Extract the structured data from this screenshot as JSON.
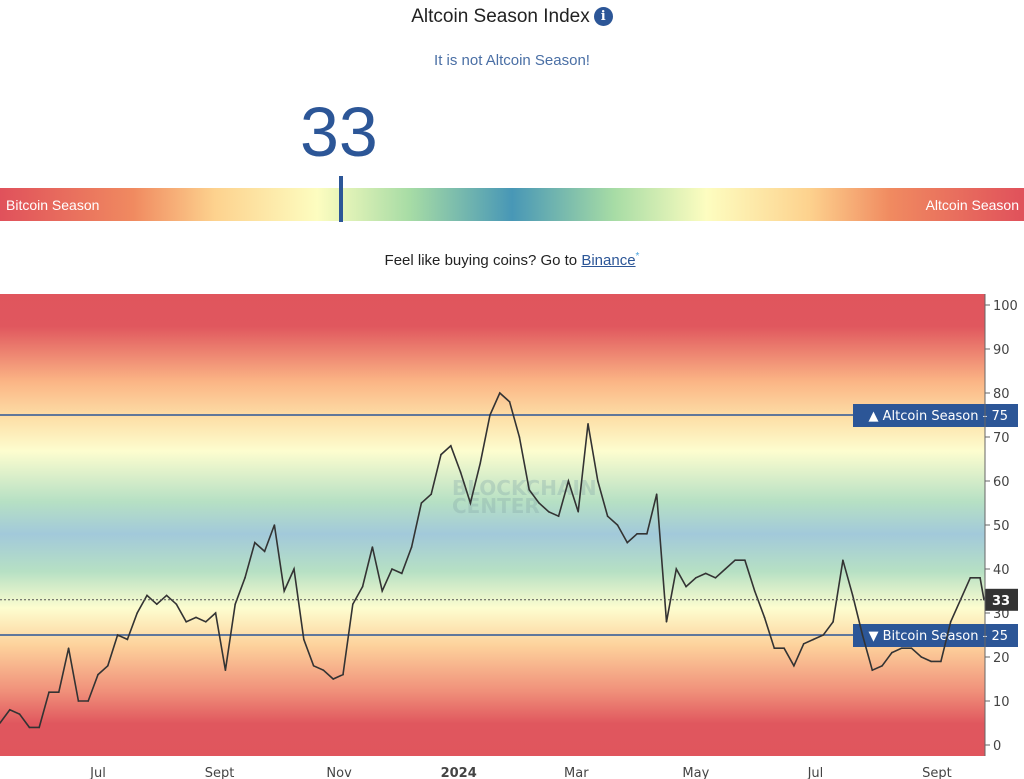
{
  "header": {
    "title": "Altcoin Season Index",
    "info_icon": "info-icon",
    "status": "It is not Altcoin Season!",
    "value": "33"
  },
  "gauge": {
    "left_label": "Bitcoin Season",
    "right_label": "Altcoin Season",
    "value_percent": 33
  },
  "promo": {
    "text": "Feel like buying coins? Go to ",
    "link": "Binance",
    "asterisk": "*"
  },
  "chart_data": {
    "type": "line",
    "title": "",
    "watermark": "BLOCKCHAIN CENTER",
    "xlim": [
      "2023-05-12",
      "2024-09-25"
    ],
    "ylim": [
      0,
      100
    ],
    "yticks": [
      0,
      10,
      20,
      30,
      40,
      50,
      60,
      70,
      80,
      90,
      100
    ],
    "xticks": [
      {
        "date": "2023-07-01",
        "label": "Jul"
      },
      {
        "date": "2023-09-01",
        "label": "Sept"
      },
      {
        "date": "2023-11-01",
        "label": "Nov"
      },
      {
        "date": "2024-01-01",
        "label": "2024"
      },
      {
        "date": "2024-03-01",
        "label": "Mar"
      },
      {
        "date": "2024-05-01",
        "label": "May"
      },
      {
        "date": "2024-07-01",
        "label": "Jul"
      },
      {
        "date": "2024-09-01",
        "label": "Sept"
      }
    ],
    "thresholds": [
      {
        "label": "▲ Altcoin Season - 75",
        "value": 75
      },
      {
        "label": "▼ Bitcoin Season - 25",
        "value": 25
      }
    ],
    "current": {
      "label": "33",
      "value": 33
    },
    "line_color": "#333333",
    "threshold_color": "#2c5697",
    "points": [
      [
        "2023-05-12",
        5
      ],
      [
        "2023-05-17",
        8
      ],
      [
        "2023-05-22",
        7
      ],
      [
        "2023-05-27",
        4
      ],
      [
        "2023-06-01",
        4
      ],
      [
        "2023-06-06",
        12
      ],
      [
        "2023-06-11",
        12
      ],
      [
        "2023-06-16",
        22
      ],
      [
        "2023-06-21",
        10
      ],
      [
        "2023-06-26",
        10
      ],
      [
        "2023-07-01",
        16
      ],
      [
        "2023-07-06",
        18
      ],
      [
        "2023-07-11",
        25
      ],
      [
        "2023-07-16",
        24
      ],
      [
        "2023-07-21",
        30
      ],
      [
        "2023-07-26",
        34
      ],
      [
        "2023-07-31",
        32
      ],
      [
        "2023-08-05",
        34
      ],
      [
        "2023-08-10",
        32
      ],
      [
        "2023-08-15",
        28
      ],
      [
        "2023-08-20",
        29
      ],
      [
        "2023-08-25",
        28
      ],
      [
        "2023-08-30",
        30
      ],
      [
        "2023-09-04",
        17
      ],
      [
        "2023-09-09",
        32
      ],
      [
        "2023-09-14",
        38
      ],
      [
        "2023-09-19",
        46
      ],
      [
        "2023-09-24",
        44
      ],
      [
        "2023-09-29",
        50
      ],
      [
        "2023-10-04",
        35
      ],
      [
        "2023-10-09",
        40
      ],
      [
        "2023-10-14",
        24
      ],
      [
        "2023-10-19",
        18
      ],
      [
        "2023-10-24",
        17
      ],
      [
        "2023-10-29",
        15
      ],
      [
        "2023-11-03",
        16
      ],
      [
        "2023-11-08",
        32
      ],
      [
        "2023-11-13",
        36
      ],
      [
        "2023-11-18",
        45
      ],
      [
        "2023-11-23",
        35
      ],
      [
        "2023-11-28",
        40
      ],
      [
        "2023-12-03",
        39
      ],
      [
        "2023-12-08",
        45
      ],
      [
        "2023-12-13",
        55
      ],
      [
        "2023-12-18",
        57
      ],
      [
        "2023-12-23",
        66
      ],
      [
        "2023-12-28",
        68
      ],
      [
        "2024-01-02",
        62
      ],
      [
        "2024-01-07",
        55
      ],
      [
        "2024-01-12",
        64
      ],
      [
        "2024-01-17",
        75
      ],
      [
        "2024-01-22",
        80
      ],
      [
        "2024-01-27",
        78
      ],
      [
        "2024-02-01",
        70
      ],
      [
        "2024-02-06",
        58
      ],
      [
        "2024-02-11",
        55
      ],
      [
        "2024-02-16",
        53
      ],
      [
        "2024-02-21",
        52
      ],
      [
        "2024-02-26",
        60
      ],
      [
        "2024-03-02",
        53
      ],
      [
        "2024-03-07",
        73
      ],
      [
        "2024-03-12",
        60
      ],
      [
        "2024-03-17",
        52
      ],
      [
        "2024-03-22",
        50
      ],
      [
        "2024-03-27",
        46
      ],
      [
        "2024-04-01",
        48
      ],
      [
        "2024-04-06",
        48
      ],
      [
        "2024-04-11",
        57
      ],
      [
        "2024-04-16",
        28
      ],
      [
        "2024-04-21",
        40
      ],
      [
        "2024-04-26",
        36
      ],
      [
        "2024-05-01",
        38
      ],
      [
        "2024-05-06",
        39
      ],
      [
        "2024-05-11",
        38
      ],
      [
        "2024-05-16",
        40
      ],
      [
        "2024-05-21",
        42
      ],
      [
        "2024-05-26",
        42
      ],
      [
        "2024-05-31",
        35
      ],
      [
        "2024-06-05",
        29
      ],
      [
        "2024-06-10",
        22
      ],
      [
        "2024-06-15",
        22
      ],
      [
        "2024-06-20",
        18
      ],
      [
        "2024-06-25",
        23
      ],
      [
        "2024-06-30",
        24
      ],
      [
        "2024-07-05",
        25
      ],
      [
        "2024-07-10",
        28
      ],
      [
        "2024-07-15",
        42
      ],
      [
        "2024-07-20",
        34
      ],
      [
        "2024-07-25",
        25
      ],
      [
        "2024-07-30",
        17
      ],
      [
        "2024-08-04",
        18
      ],
      [
        "2024-08-09",
        21
      ],
      [
        "2024-08-14",
        22
      ],
      [
        "2024-08-19",
        22
      ],
      [
        "2024-08-24",
        20
      ],
      [
        "2024-08-29",
        19
      ],
      [
        "2024-09-03",
        19
      ],
      [
        "2024-09-08",
        28
      ],
      [
        "2024-09-13",
        33
      ],
      [
        "2024-09-18",
        38
      ],
      [
        "2024-09-23",
        38
      ],
      [
        "2024-09-25",
        33
      ]
    ]
  }
}
